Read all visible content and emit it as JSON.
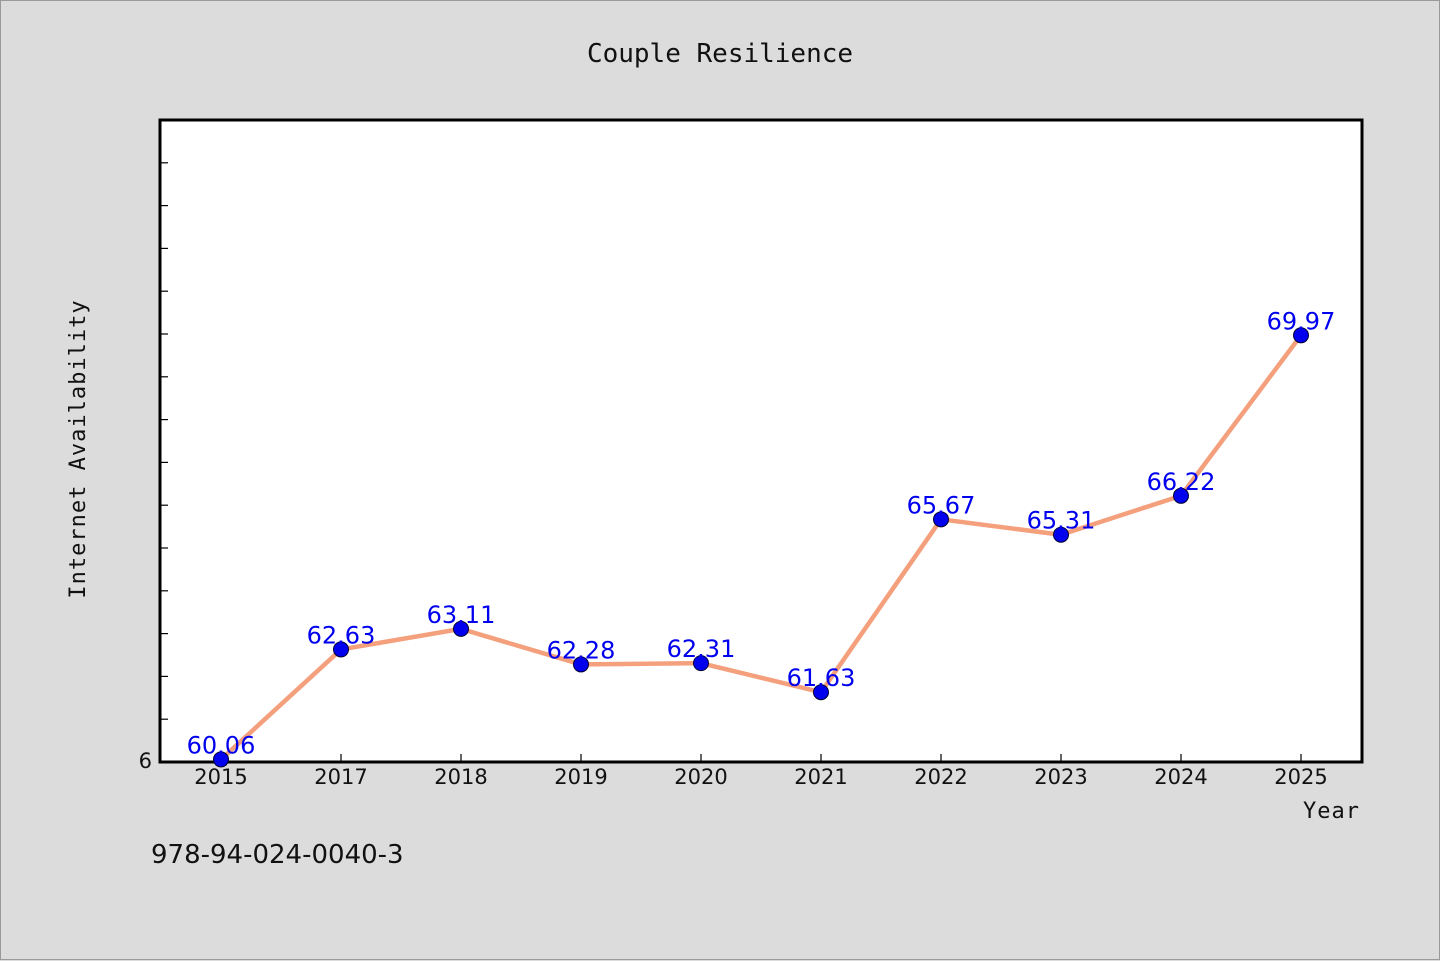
{
  "chart_data": {
    "type": "line",
    "title": "Couple Resilience",
    "xlabel": "Year",
    "ylabel": "Internet Availability",
    "categories": [
      "2015",
      "2017",
      "2018",
      "2019",
      "2020",
      "2021",
      "2022",
      "2023",
      "2024",
      "2025"
    ],
    "series": [
      {
        "values": [
          60.06,
          62.63,
          63.11,
          62.28,
          62.31,
          61.63,
          65.67,
          65.31,
          66.22,
          69.97
        ],
        "labels": [
          "60.06",
          "62.63",
          "63.11",
          "62.28",
          "62.31",
          "61.63",
          "65.67",
          "65.31",
          "66.22",
          "69.97"
        ]
      }
    ],
    "ylim": [
      60,
      75
    ],
    "y_tick_labels": [
      "6"
    ],
    "grid": false,
    "colors": {
      "line": "#f4a07c",
      "marker": "#0000ee",
      "data_label": "#0000ee"
    }
  },
  "footer": {
    "code": "978-94-024-0040-3"
  }
}
